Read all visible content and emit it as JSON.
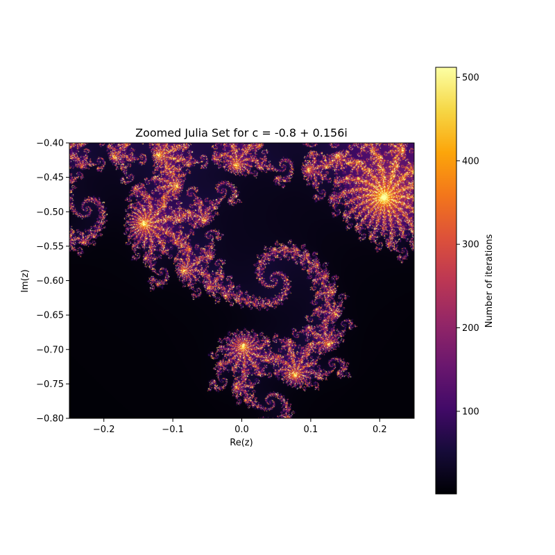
{
  "chart_data": {
    "type": "heatmap",
    "title": "Zoomed Julia Set for c = -0.8 + 0.156i",
    "xlabel": "Re(z)",
    "ylabel": "Im(z)",
    "xlim": [
      -0.25,
      0.25
    ],
    "ylim": [
      -0.8,
      -0.4
    ],
    "x_ticks": [
      -0.2,
      -0.1,
      0.0,
      0.1,
      0.2
    ],
    "x_tick_labels": [
      "−0.2",
      "−0.1",
      "0.0",
      "0.1",
      "0.2"
    ],
    "y_ticks": [
      -0.4,
      -0.45,
      -0.5,
      -0.55,
      -0.6,
      -0.65,
      -0.7,
      -0.75,
      -0.8
    ],
    "y_tick_labels": [
      "−0.40",
      "−0.45",
      "−0.50",
      "−0.55",
      "−0.60",
      "−0.65",
      "−0.70",
      "−0.75",
      "−0.80"
    ],
    "julia_c": {
      "re": -0.8,
      "im": 0.156
    },
    "max_iterations": 512,
    "colormap": "inferno",
    "colorbar": {
      "label": "Number of iterations",
      "range": [
        1,
        512
      ],
      "ticks": [
        100,
        200,
        300,
        400,
        500
      ],
      "tick_labels": [
        "100",
        "200",
        "300",
        "400",
        "500"
      ]
    },
    "grid": false
  }
}
